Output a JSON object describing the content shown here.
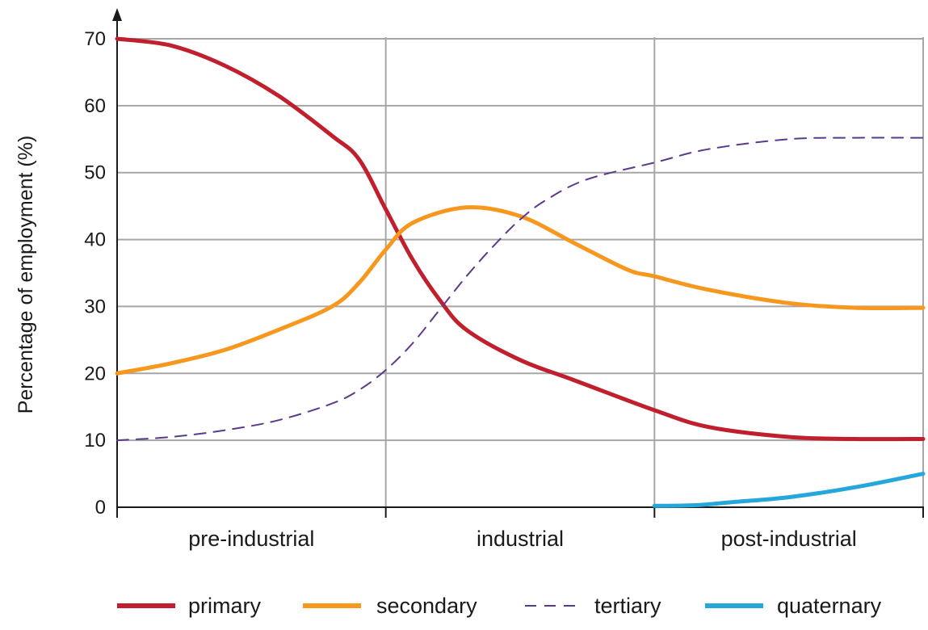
{
  "chart_data": {
    "type": "line",
    "title": "",
    "xlabel": "",
    "ylabel": "Percentage of employment (%)",
    "ylim": [
      0,
      70
    ],
    "yticks": [
      0,
      10,
      20,
      30,
      40,
      50,
      60,
      70
    ],
    "xlim": [
      0,
      3
    ],
    "x_categories": [
      {
        "label": "pre-industrial",
        "center": 0.5
      },
      {
        "label": "industrial",
        "center": 1.5
      },
      {
        "label": "post-industrial",
        "center": 2.5
      }
    ],
    "x_gridlines": [
      1,
      2,
      3
    ],
    "x_ticks": [
      0,
      1,
      2,
      3
    ],
    "grid": true,
    "legend_position": "bottom",
    "series": [
      {
        "name": "primary",
        "color": "#c0202e",
        "style": "solid",
        "points": [
          [
            0,
            70
          ],
          [
            0.2,
            69
          ],
          [
            0.4,
            66
          ],
          [
            0.6,
            61.5
          ],
          [
            0.8,
            55.5
          ],
          [
            0.9,
            52
          ],
          [
            1.0,
            44.5
          ],
          [
            1.1,
            37
          ],
          [
            1.2,
            31
          ],
          [
            1.3,
            26.5
          ],
          [
            1.5,
            22
          ],
          [
            1.7,
            19
          ],
          [
            2.0,
            14.5
          ],
          [
            2.2,
            12
          ],
          [
            2.5,
            10.5
          ],
          [
            2.75,
            10.2
          ],
          [
            3.0,
            10.2
          ]
        ]
      },
      {
        "name": "secondary",
        "color": "#f7971e",
        "style": "solid",
        "points": [
          [
            0,
            20
          ],
          [
            0.2,
            21.5
          ],
          [
            0.4,
            23.5
          ],
          [
            0.6,
            26.5
          ],
          [
            0.8,
            30
          ],
          [
            0.9,
            33.5
          ],
          [
            1.0,
            38.5
          ],
          [
            1.1,
            42.5
          ],
          [
            1.3,
            44.8
          ],
          [
            1.5,
            43.5
          ],
          [
            1.7,
            39.5
          ],
          [
            1.9,
            35.5
          ],
          [
            2.0,
            34.5
          ],
          [
            2.2,
            32.5
          ],
          [
            2.5,
            30.5
          ],
          [
            2.75,
            29.8
          ],
          [
            3.0,
            29.8
          ]
        ]
      },
      {
        "name": "tertiary",
        "color": "#5b3a8c",
        "style": "dashed",
        "points": [
          [
            0,
            10
          ],
          [
            0.2,
            10.5
          ],
          [
            0.4,
            11.5
          ],
          [
            0.6,
            13
          ],
          [
            0.8,
            15.5
          ],
          [
            0.9,
            17.5
          ],
          [
            1.0,
            20.5
          ],
          [
            1.1,
            24.5
          ],
          [
            1.2,
            29.5
          ],
          [
            1.3,
            34.5
          ],
          [
            1.4,
            39
          ],
          [
            1.5,
            43
          ],
          [
            1.6,
            46
          ],
          [
            1.75,
            49
          ],
          [
            2.0,
            51.5
          ],
          [
            2.2,
            53.5
          ],
          [
            2.5,
            55
          ],
          [
            2.75,
            55.2
          ],
          [
            3.0,
            55.2
          ]
        ]
      },
      {
        "name": "quaternary",
        "color": "#26a7dc",
        "style": "solid",
        "points": [
          [
            2.0,
            0.2
          ],
          [
            2.15,
            0.3
          ],
          [
            2.3,
            0.8
          ],
          [
            2.5,
            1.5
          ],
          [
            2.75,
            3
          ],
          [
            3.0,
            5
          ]
        ]
      }
    ]
  }
}
